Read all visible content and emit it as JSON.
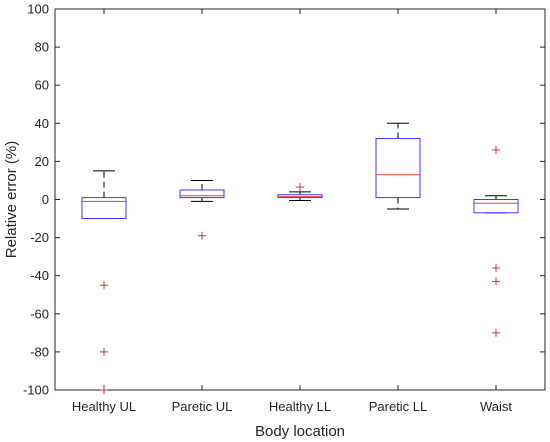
{
  "chart_data": {
    "type": "boxplot",
    "xlabel": "Body location",
    "ylabel": "Relative error (%)",
    "ylim": [
      -100,
      100
    ],
    "yticks": [
      -100,
      -80,
      -60,
      -40,
      -20,
      0,
      20,
      40,
      60,
      80,
      100
    ],
    "grid": false,
    "colors": {
      "box": "#3a3aff",
      "median": "#ff3a3a",
      "whisker": "#000000",
      "outlier": "#cc3333",
      "axis": "#262626"
    },
    "categories": [
      "Healthy UL",
      "Paretic UL",
      "Healthy LL",
      "Paretic LL",
      "Waist"
    ],
    "boxes": [
      {
        "q1": -10,
        "median": -1,
        "q3": 1,
        "whisker_low": -10,
        "whisker_high": 15,
        "outliers": [
          -45,
          -80,
          -100
        ]
      },
      {
        "q1": 1,
        "median": 2,
        "q3": 5,
        "whisker_low": -1,
        "whisker_high": 10,
        "outliers": [
          -19
        ]
      },
      {
        "q1": 1,
        "median": 1.5,
        "q3": 2.5,
        "whisker_low": -0.5,
        "whisker_high": 4,
        "outliers": [
          6.5
        ]
      },
      {
        "q1": 1,
        "median": 13,
        "q3": 32,
        "whisker_low": -5,
        "whisker_high": 40,
        "outliers": []
      },
      {
        "q1": -7,
        "median": -2,
        "q3": 0,
        "whisker_low": -7,
        "whisker_high": 2,
        "outliers": [
          26,
          -36,
          -43,
          -70
        ]
      }
    ]
  }
}
